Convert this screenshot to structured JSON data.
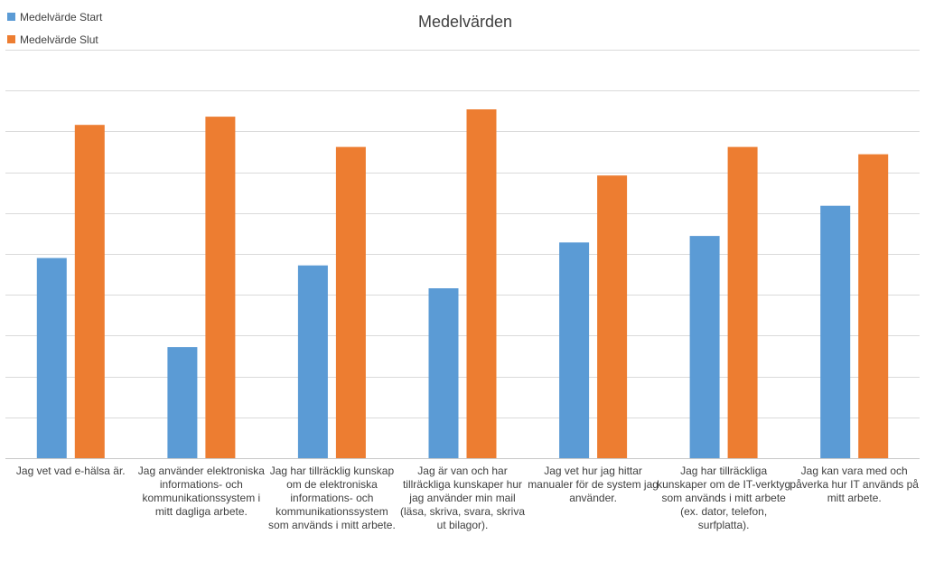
{
  "chart_data": {
    "type": "bar",
    "title": "Medelvärden",
    "xlabel": "",
    "ylabel": "",
    "ylim": [
      0,
      5
    ],
    "grid": true,
    "legend_position": "top-left",
    "categories": [
      "Jag vet vad e-hälsa är.",
      "Jag använder elektroniska informations- och kommunikationssystem i mitt dagliga arbete.",
      "Jag har tillräcklig kunskap om de elektroniska informations- och kommunikationssystem som används i mitt arbete.",
      "Jag är van och har tillräckliga kunskaper hur jag använder min mail (läsa, skriva, svara, skriva ut bilagor).",
      "Jag vet hur jag hittar manualer för de system jag använder.",
      "Jag har tillräckliga kunskaper om de IT-verktyg som används i mitt arbete (ex. dator, telefon, surfplatta).",
      "Jag kan vara med och påverka hur IT används på mitt arbete."
    ],
    "series": [
      {
        "name": "Medelvärde Start",
        "color": "#5B9BD5",
        "values": [
          2.45,
          1.36,
          2.36,
          2.08,
          2.64,
          2.72,
          3.09
        ]
      },
      {
        "name": "Medelvärde Slut",
        "color": "#ED7D31",
        "values": [
          4.08,
          4.18,
          3.81,
          4.27,
          3.46,
          3.81,
          3.72
        ]
      }
    ]
  }
}
